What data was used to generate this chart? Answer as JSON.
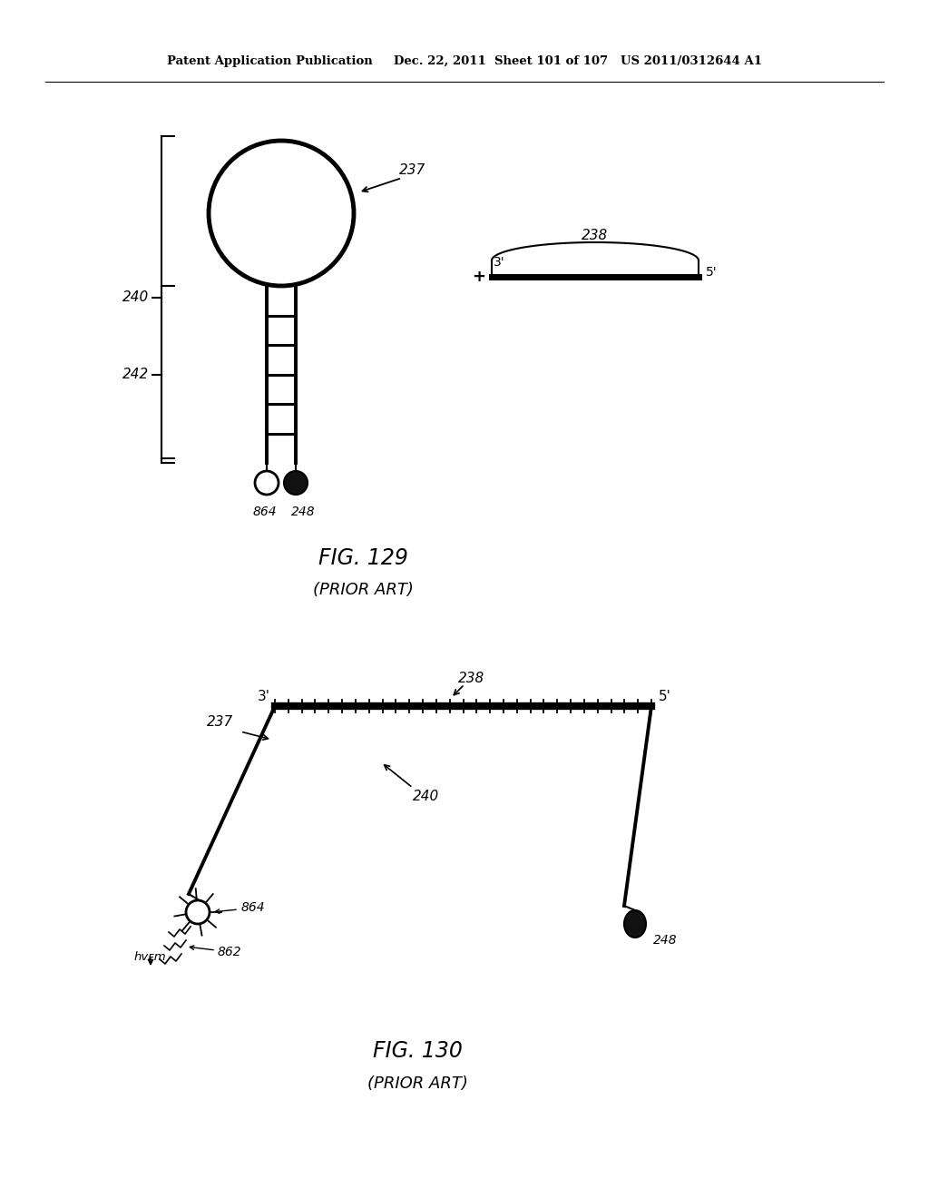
{
  "bg_color": "#ffffff",
  "header_text": "Patent Application Publication     Dec. 22, 2011  Sheet 101 of 107   US 2011/0312644 A1",
  "fig129_label": "FIG. 129",
  "fig129_sub": "(PRIOR ART)",
  "fig130_label": "FIG. 130",
  "fig130_sub": "(PRIOR ART)",
  "label_237_top": "237",
  "label_238_top": "238",
  "label_240_top": "240",
  "label_242": "242",
  "label_864_top": "864",
  "label_248_top": "248",
  "label_3prime_top": "3'",
  "label_5prime_top": "5'",
  "label_237_bot": "237",
  "label_238_bot": "238",
  "label_240_bot": "240",
  "label_864_bot": "864",
  "label_248_bot": "248",
  "label_3prime_bot": "3'",
  "label_5prime_bot": "5'",
  "label_862": "862",
  "label_hvem": "hvᴇm"
}
